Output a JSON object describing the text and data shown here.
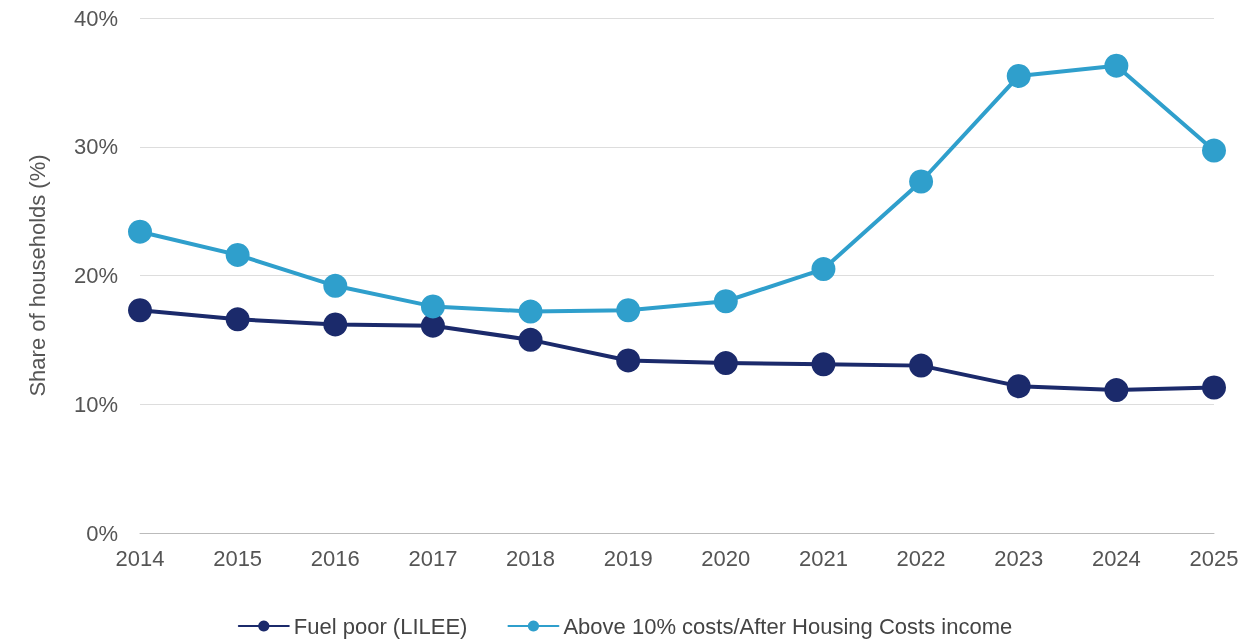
{
  "chart_data": {
    "type": "line",
    "ylabel": "Share of households (%)",
    "categories": [
      "2014",
      "2015",
      "2016",
      "2017",
      "2018",
      "2019",
      "2020",
      "2021",
      "2022",
      "2023",
      "2024",
      "2025"
    ],
    "series": [
      {
        "name": "Fuel poor (LILEE)",
        "color": "#1b2a6b",
        "values": [
          17.3,
          16.6,
          16.2,
          16.1,
          15.0,
          13.4,
          13.2,
          13.1,
          13.0,
          11.4,
          11.1,
          11.3
        ]
      },
      {
        "name": "Above 10% costs/After Housing Costs income",
        "color": "#2f9fcc",
        "values": [
          23.4,
          21.6,
          19.2,
          17.6,
          17.2,
          17.3,
          18.0,
          20.5,
          27.3,
          35.5,
          36.3,
          29.7
        ]
      }
    ],
    "ylim": [
      0,
      40
    ],
    "yticks": [
      {
        "value": 0,
        "label": "0%"
      },
      {
        "value": 10,
        "label": "10%"
      },
      {
        "value": 20,
        "label": "20%"
      },
      {
        "value": 30,
        "label": "30%"
      },
      {
        "value": 40,
        "label": "40%"
      }
    ],
    "grid": "y",
    "legend": "bottom",
    "marker": "circle",
    "line_style": "solid"
  }
}
